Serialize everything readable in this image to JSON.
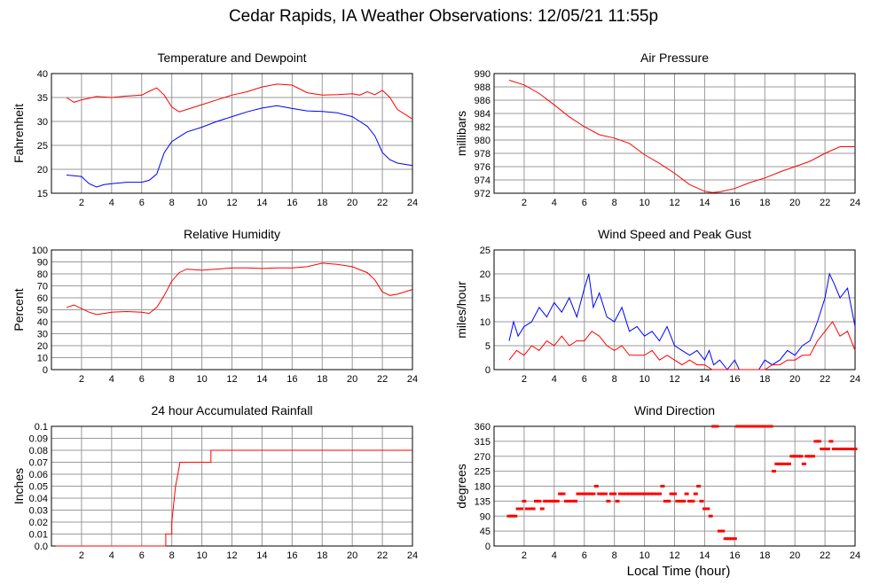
{
  "page": {
    "title": "Cedar Rapids, IA Weather Observations: 12/05/21 11:55p",
    "x_caption": "Local Time (hour)"
  },
  "chart_data": [
    {
      "id": "temp",
      "type": "line",
      "title": "Temperature and Dewpoint",
      "xlabel": "",
      "ylabel": "Fahrenheit",
      "xlim": [
        0,
        24
      ],
      "ylim": [
        15,
        40
      ],
      "xticks": [
        2,
        4,
        6,
        8,
        10,
        12,
        14,
        16,
        18,
        20,
        22,
        24
      ],
      "yticks": [
        15,
        20,
        25,
        30,
        35,
        40
      ],
      "grid": true,
      "series": [
        {
          "color": "#ff0000",
          "x": [
            1,
            1.5,
            2,
            3,
            4,
            5,
            6,
            6.5,
            7,
            7.5,
            8,
            8.5,
            9,
            10,
            11,
            12,
            13,
            14,
            15,
            16,
            17,
            18,
            19,
            20,
            20.5,
            21,
            21.5,
            22,
            22.5,
            23,
            24
          ],
          "y": [
            35,
            34,
            34.5,
            35.2,
            35,
            35.3,
            35.5,
            36.3,
            37,
            35.5,
            33,
            32,
            32.5,
            33.5,
            34.5,
            35.5,
            36.2,
            37.2,
            37.8,
            37.6,
            36,
            35.5,
            35.6,
            35.8,
            35.5,
            36.2,
            35.6,
            36.5,
            35,
            32.5,
            30.5
          ]
        },
        {
          "color": "#0000ff",
          "x": [
            1,
            2,
            2.5,
            3,
            3.5,
            4,
            5,
            6,
            6.5,
            7,
            7.5,
            8,
            8.5,
            9,
            10,
            11,
            12,
            13,
            14,
            15,
            16,
            17,
            18,
            19,
            20,
            20.5,
            21,
            21.5,
            22,
            22.5,
            23,
            24
          ],
          "y": [
            18.8,
            18.5,
            17,
            16.3,
            16.8,
            17,
            17.3,
            17.3,
            17.7,
            19,
            23.5,
            25.8,
            26.8,
            27.8,
            28.8,
            30,
            31,
            32,
            32.8,
            33.3,
            32.7,
            32.2,
            32.1,
            31.8,
            31,
            30,
            29,
            27,
            23.5,
            22,
            21.3,
            20.8
          ]
        }
      ]
    },
    {
      "id": "pressure",
      "type": "line",
      "title": "Air Pressure",
      "xlabel": "",
      "ylabel": "millibars",
      "xlim": [
        0,
        24
      ],
      "ylim": [
        972,
        990
      ],
      "xticks": [
        2,
        4,
        6,
        8,
        10,
        12,
        14,
        16,
        18,
        20,
        22,
        24
      ],
      "yticks": [
        972,
        974,
        976,
        978,
        980,
        982,
        984,
        986,
        988,
        990
      ],
      "grid": true,
      "series": [
        {
          "color": "#ff0000",
          "x": [
            1,
            2,
            3,
            4,
            5,
            6,
            7,
            8,
            9,
            10,
            11,
            12,
            13,
            14,
            14.5,
            15,
            16,
            17,
            18,
            19,
            20,
            21,
            22,
            23,
            24
          ],
          "y": [
            989,
            988.3,
            987,
            985.3,
            983.5,
            982,
            980.8,
            980.3,
            979.5,
            977.8,
            976.5,
            975,
            973.3,
            972.3,
            972.1,
            972.2,
            972.7,
            973.6,
            974.3,
            975.2,
            976,
            976.8,
            978,
            979,
            979
          ]
        }
      ]
    },
    {
      "id": "humidity",
      "type": "line",
      "title": "Relative Humidity",
      "xlabel": "",
      "ylabel": "Percent",
      "xlim": [
        0,
        24
      ],
      "ylim": [
        0,
        100
      ],
      "xticks": [
        2,
        4,
        6,
        8,
        10,
        12,
        14,
        16,
        18,
        20,
        22,
        24
      ],
      "yticks": [
        0,
        10,
        20,
        30,
        40,
        50,
        60,
        70,
        80,
        90,
        100
      ],
      "grid": true,
      "series": [
        {
          "color": "#ff0000",
          "x": [
            1,
            1.5,
            2,
            2.5,
            3,
            3.5,
            4,
            5,
            6,
            6.5,
            7,
            7.5,
            8,
            8.5,
            9,
            10,
            11,
            12,
            13,
            14,
            15,
            16,
            17,
            18,
            19,
            20,
            21,
            21.5,
            22,
            22.5,
            23,
            24
          ],
          "y": [
            52,
            54,
            51,
            48,
            46,
            47,
            48,
            48.5,
            48,
            47,
            52,
            62,
            74,
            81,
            84,
            83,
            84,
            85,
            85,
            84.5,
            85,
            85,
            86,
            89,
            88,
            86,
            81,
            75,
            65,
            62,
            63,
            67
          ]
        }
      ]
    },
    {
      "id": "wind",
      "type": "line",
      "title": "Wind Speed and Peak Gust",
      "xlabel": "",
      "ylabel": "miles/hour",
      "xlim": [
        0,
        24
      ],
      "ylim": [
        0,
        25
      ],
      "xticks": [
        2,
        4,
        6,
        8,
        10,
        12,
        14,
        16,
        18,
        20,
        22,
        24
      ],
      "yticks": [
        0,
        5,
        10,
        15,
        20,
        25
      ],
      "grid": true,
      "series": [
        {
          "color": "#0000ff",
          "x": [
            1,
            1.3,
            1.6,
            2,
            2.5,
            3,
            3.5,
            4,
            4.5,
            5,
            5.5,
            6,
            6.3,
            6.6,
            7,
            7.5,
            8,
            8.5,
            9,
            9.5,
            10,
            10.5,
            11,
            11.5,
            12,
            12.5,
            13,
            13.5,
            14,
            14.3,
            14.6,
            15,
            15.5,
            16,
            16.3,
            17,
            17.6,
            18,
            18.5,
            19,
            19.5,
            20,
            20.5,
            21,
            21.5,
            22,
            22.3,
            22.6,
            23,
            23.5,
            24
          ],
          "y": [
            6,
            10,
            7,
            9,
            10,
            13,
            11,
            14,
            12,
            15,
            11,
            17,
            20,
            13,
            16,
            11,
            10,
            13,
            8,
            9,
            7,
            8,
            6,
            9,
            5,
            4,
            3,
            4,
            2,
            4,
            1,
            2,
            0,
            2,
            0,
            0,
            0,
            2,
            1,
            2,
            4,
            3,
            5,
            6,
            10,
            15,
            20,
            18,
            15,
            17,
            9
          ]
        },
        {
          "color": "#ff0000",
          "x": [
            1,
            1.5,
            2,
            2.5,
            3,
            3.5,
            4,
            4.5,
            5,
            5.5,
            6,
            6.5,
            7,
            7.5,
            8,
            8.5,
            9,
            9.5,
            10,
            10.5,
            11,
            11.5,
            12,
            12.5,
            13,
            13.5,
            14,
            14.5,
            15,
            16,
            17,
            17.6,
            18,
            18.5,
            19,
            19.5,
            20,
            20.5,
            21,
            21.5,
            22,
            22.5,
            23,
            23.5,
            24
          ],
          "y": [
            2,
            4,
            3,
            5,
            4,
            6,
            5,
            7,
            5,
            6,
            6,
            8,
            7,
            5,
            4,
            5,
            3,
            3,
            3,
            4,
            2,
            3,
            2,
            1,
            2,
            1,
            1,
            0,
            0,
            0,
            0,
            0,
            0,
            1,
            1,
            2,
            2,
            3,
            3,
            6,
            8,
            10,
            7,
            8,
            4
          ]
        }
      ]
    },
    {
      "id": "rain",
      "type": "line",
      "title": "24 hour Accumulated Rainfall",
      "xlabel": "",
      "ylabel": "Inches",
      "xlim": [
        0,
        24
      ],
      "ylim": [
        0,
        0.1
      ],
      "xticks": [
        2,
        4,
        6,
        8,
        10,
        12,
        14,
        16,
        18,
        20,
        22,
        24
      ],
      "yticks": [
        "0.0",
        "0.01",
        "0.02",
        "0.03",
        "0.04",
        "0.05",
        "0.06",
        "0.07",
        "0.08",
        "0.09",
        "0.1"
      ],
      "grid": true,
      "series": [
        {
          "color": "#ff0000",
          "x": [
            0.3,
            7.6,
            7.6,
            8.0,
            8.0,
            8.25,
            8.4,
            8.55,
            10.6,
            10.6,
            24
          ],
          "y": [
            0,
            0,
            0.01,
            0.01,
            0.02,
            0.05,
            0.06,
            0.07,
            0.07,
            0.08,
            0.08
          ]
        }
      ]
    },
    {
      "id": "direction",
      "type": "scatter",
      "title": "Wind Direction",
      "xlabel": "Local Time (hour)",
      "ylabel": "degrees",
      "xlim": [
        0,
        24
      ],
      "ylim": [
        0,
        360
      ],
      "xticks": [
        2,
        4,
        6,
        8,
        10,
        12,
        14,
        16,
        18,
        20,
        22,
        24
      ],
      "yticks": [
        0,
        45,
        90,
        135,
        180,
        225,
        270,
        315,
        360
      ],
      "grid": true,
      "series": [
        {
          "color": "#ff0000",
          "x": [
            1.0,
            1.2,
            1.4,
            1.6,
            1.8,
            2.0,
            2.2,
            2.4,
            2.6,
            2.8,
            3.0,
            3.2,
            3.4,
            3.6,
            3.8,
            4.0,
            4.2,
            4.4,
            4.6,
            4.8,
            5.0,
            5.2,
            5.4,
            5.6,
            5.8,
            6.0,
            6.2,
            6.4,
            6.6,
            6.8,
            7.0,
            7.2,
            7.4,
            7.6,
            7.8,
            8.0,
            8.2,
            8.4,
            8.6,
            8.8,
            9.0,
            9.2,
            9.4,
            9.6,
            9.8,
            10.0,
            10.2,
            10.4,
            10.6,
            10.8,
            11.0,
            11.2,
            11.4,
            11.6,
            11.8,
            12.0,
            12.2,
            12.4,
            12.6,
            12.8,
            13.0,
            13.2,
            13.4,
            13.6,
            13.8,
            14.0,
            14.2,
            14.4,
            14.6,
            14.8,
            15.0,
            15.2,
            15.4,
            15.6,
            15.8,
            16.0,
            16.2,
            16.4,
            16.6,
            16.8,
            17.0,
            17.2,
            17.4,
            17.6,
            17.8,
            18.0,
            18.2,
            18.4,
            18.6,
            18.8,
            19.0,
            19.2,
            19.4,
            19.6,
            19.8,
            20.0,
            20.2,
            20.4,
            20.6,
            20.8,
            21.0,
            21.2,
            21.4,
            21.6,
            21.8,
            22.0,
            22.2,
            22.4,
            22.6,
            22.8,
            23.0,
            23.2,
            23.4,
            23.6,
            23.8,
            24.0
          ],
          "y": [
            90,
            90,
            90,
            112,
            112,
            135,
            112,
            112,
            112,
            135,
            135,
            112,
            135,
            135,
            135,
            135,
            135,
            157,
            157,
            135,
            135,
            135,
            135,
            157,
            157,
            157,
            157,
            157,
            157,
            180,
            157,
            157,
            157,
            135,
            157,
            157,
            135,
            157,
            157,
            157,
            157,
            157,
            157,
            157,
            157,
            157,
            157,
            157,
            157,
            157,
            157,
            180,
            135,
            135,
            157,
            157,
            135,
            135,
            135,
            157,
            135,
            135,
            157,
            180,
            135,
            112,
            112,
            90,
            360,
            360,
            45,
            45,
            22,
            22,
            22,
            22,
            360,
            360,
            360,
            360,
            360,
            360,
            360,
            360,
            360,
            360,
            360,
            360,
            225,
            247,
            247,
            247,
            247,
            247,
            270,
            270,
            270,
            270,
            247,
            270,
            270,
            270,
            315,
            315,
            292,
            292,
            292,
            315,
            292,
            292,
            292,
            292,
            292,
            292,
            292,
            292
          ]
        }
      ]
    }
  ]
}
